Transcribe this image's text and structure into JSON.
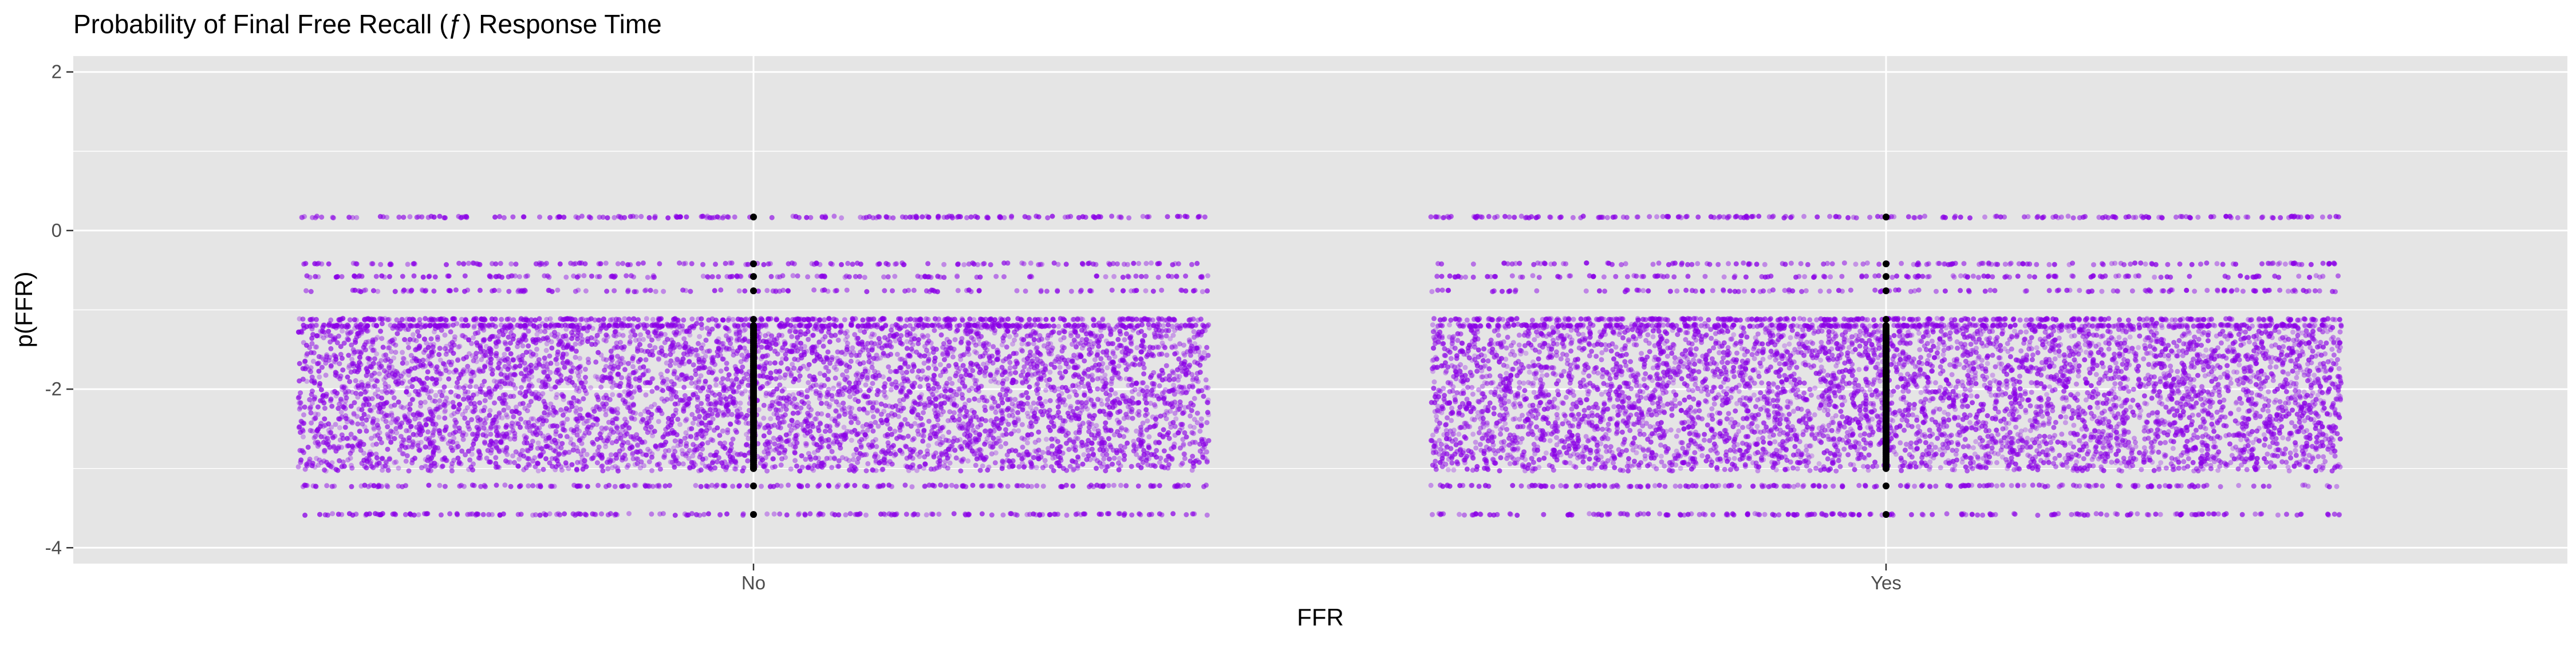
{
  "chart_data": {
    "type": "scatter",
    "title": "Probability of Final Free Recall (ƒ) Response Time",
    "xlabel": "FFR",
    "ylabel": "p(FFR)",
    "categories": [
      "No",
      "Yes"
    ],
    "x_ticks": [
      "No",
      "Yes"
    ],
    "y_ticks": [
      "-4",
      "-2",
      "0",
      "2"
    ],
    "ylim": [
      -4.2,
      2.2
    ],
    "grid": true,
    "legend": "none",
    "series": [
      {
        "category": "No",
        "color": "#8a00e6",
        "points_description": "jittered raw responses",
        "y_levels_sparse": [
          0.17,
          -0.42,
          -0.58,
          -0.76,
          -3.22,
          -3.58
        ],
        "y_dense_range": [
          -3.0,
          -1.2
        ],
        "y_pair_levels": [
          -1.12,
          -1.2
        ]
      },
      {
        "category": "Yes",
        "color": "#8a00e6",
        "points_description": "jittered raw responses",
        "y_levels_sparse": [
          0.17,
          -0.42,
          -0.58,
          -0.76,
          -3.22,
          -3.58
        ],
        "y_dense_range": [
          -3.0,
          -1.2
        ],
        "y_pair_levels": [
          -1.12,
          -1.2
        ]
      }
    ],
    "center_points": {
      "color": "#000000",
      "No": [
        0.17,
        -0.42,
        -0.58,
        -0.76,
        -1.12,
        -1.2,
        -1.3,
        -1.4,
        -1.5,
        -1.6,
        -1.7,
        -1.8,
        -1.9,
        -2.0,
        -2.1,
        -2.2,
        -2.3,
        -2.4,
        -2.5,
        -2.6,
        -2.7,
        -2.8,
        -2.9,
        -3.0,
        -3.22,
        -3.58
      ],
      "Yes": [
        0.17,
        -0.42,
        -0.58,
        -0.76,
        -1.12,
        -1.2,
        -1.3,
        -1.4,
        -1.5,
        -1.6,
        -1.7,
        -1.8,
        -1.9,
        -2.0,
        -2.1,
        -2.2,
        -2.3,
        -2.4,
        -2.5,
        -2.6,
        -2.7,
        -2.8,
        -2.9,
        -3.0,
        -3.22,
        -3.58
      ]
    },
    "colors": {
      "panel_background": "#e5e5e5",
      "grid": "#ffffff",
      "points": "#8a00e6",
      "summary_points": "#000000"
    }
  }
}
